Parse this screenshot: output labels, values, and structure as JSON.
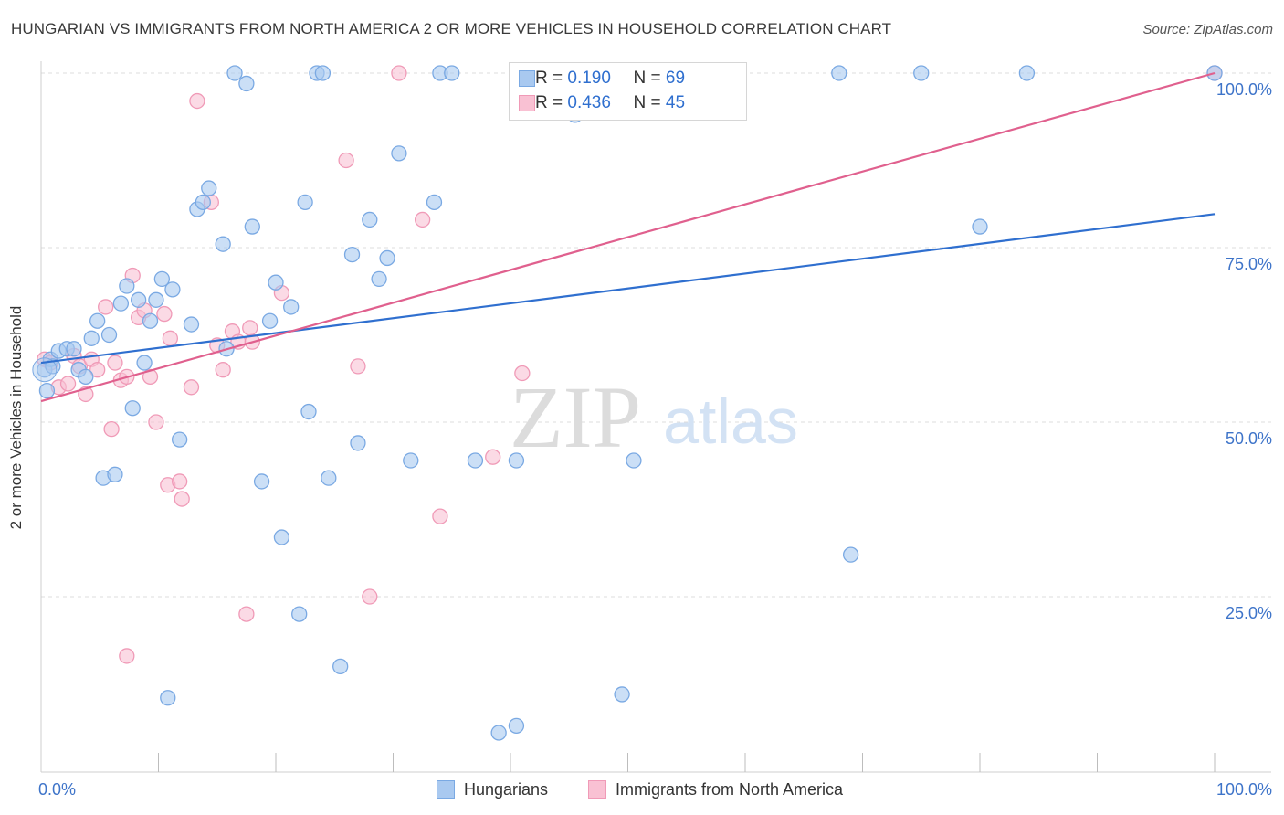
{
  "title": "HUNGARIAN VS IMMIGRANTS FROM NORTH AMERICA 2 OR MORE VEHICLES IN HOUSEHOLD CORRELATION CHART",
  "source": "Source: ZipAtlas.com",
  "watermark": {
    "zip": "ZIP",
    "atlas": "atlas"
  },
  "stats": {
    "r_label": "R =",
    "n_label": "N =",
    "hungarians": {
      "r": "0.190",
      "n": "69"
    },
    "immigrants": {
      "r": "0.436",
      "n": "45"
    }
  },
  "legend": {
    "hungarians": "Hungarians",
    "immigrants": "Immigrants from North America"
  },
  "colors": {
    "hungarians_fill": "#a9c9f0",
    "hungarians_stroke": "#7aa9e3",
    "hungarians_line": "#2f6fcf",
    "immigrants_fill": "#f9c1d3",
    "immigrants_stroke": "#f09ab7",
    "immigrants_line": "#e0608e",
    "tick_label": "#3e74c9"
  },
  "chart_data": {
    "type": "scatter",
    "title": "HUNGARIAN VS IMMIGRANTS FROM NORTH AMERICA 2 OR MORE VEHICLES IN HOUSEHOLD CORRELATION CHART",
    "xlabel": "",
    "ylabel": "2 or more Vehicles in Household",
    "xlim": [
      0,
      100
    ],
    "ylim": [
      0,
      105
    ],
    "x_tick_labels": [
      "0.0%",
      "100.0%"
    ],
    "y_ticks": [
      25,
      50,
      75,
      100
    ],
    "y_tick_labels": [
      "25.0%",
      "50.0%",
      "75.0%",
      "100.0%"
    ],
    "grid": "horizontal dashed",
    "legend_position": "bottom-center",
    "series": [
      {
        "name": "Hungarians",
        "trend": {
          "x": [
            0,
            100
          ],
          "y": [
            58.5,
            79.8
          ]
        },
        "points": [
          [
            0.3,
            57.5
          ],
          [
            0.5,
            54.5
          ],
          [
            0.8,
            59.0
          ],
          [
            1.0,
            58.0
          ],
          [
            1.5,
            60.2
          ],
          [
            2.2,
            60.5
          ],
          [
            2.8,
            60.5
          ],
          [
            3.2,
            57.5
          ],
          [
            3.8,
            56.5
          ],
          [
            4.3,
            62.0
          ],
          [
            4.8,
            64.5
          ],
          [
            5.3,
            42.0
          ],
          [
            5.8,
            62.5
          ],
          [
            6.3,
            42.5
          ],
          [
            6.8,
            67.0
          ],
          [
            7.3,
            69.5
          ],
          [
            7.8,
            52.0
          ],
          [
            8.3,
            67.5
          ],
          [
            8.8,
            58.5
          ],
          [
            9.3,
            64.5
          ],
          [
            9.8,
            67.5
          ],
          [
            10.3,
            70.5
          ],
          [
            10.8,
            10.5
          ],
          [
            11.2,
            69.0
          ],
          [
            11.8,
            47.5
          ],
          [
            12.8,
            64.0
          ],
          [
            13.3,
            80.5
          ],
          [
            13.8,
            81.5
          ],
          [
            14.3,
            83.5
          ],
          [
            15.5,
            75.5
          ],
          [
            15.8,
            60.5
          ],
          [
            16.5,
            100.0
          ],
          [
            17.5,
            98.5
          ],
          [
            18.0,
            78.0
          ],
          [
            18.8,
            41.5
          ],
          [
            19.5,
            64.5
          ],
          [
            20.0,
            70.0
          ],
          [
            20.5,
            33.5
          ],
          [
            21.3,
            66.5
          ],
          [
            22.0,
            22.5
          ],
          [
            22.5,
            81.5
          ],
          [
            22.8,
            51.5
          ],
          [
            23.5,
            100.0
          ],
          [
            24.0,
            100.0
          ],
          [
            24.5,
            42.0
          ],
          [
            25.5,
            15.0
          ],
          [
            26.5,
            74.0
          ],
          [
            27.0,
            47.0
          ],
          [
            28.0,
            79.0
          ],
          [
            28.8,
            70.5
          ],
          [
            29.5,
            73.5
          ],
          [
            30.5,
            88.5
          ],
          [
            31.5,
            44.5
          ],
          [
            33.5,
            81.5
          ],
          [
            34.0,
            100.0
          ],
          [
            35.0,
            100.0
          ],
          [
            37.0,
            44.5
          ],
          [
            39.0,
            5.5
          ],
          [
            40.5,
            44.5
          ],
          [
            40.5,
            6.5
          ],
          [
            45.5,
            94.0
          ],
          [
            49.5,
            11.0
          ],
          [
            50.5,
            44.5
          ],
          [
            68.0,
            100.0
          ],
          [
            69.0,
            31.0
          ],
          [
            75.0,
            100.0
          ],
          [
            80.0,
            78.0
          ],
          [
            84.0,
            100.0
          ],
          [
            100.0,
            100.0
          ]
        ]
      },
      {
        "name": "Immigrants from North America",
        "trend": {
          "x": [
            0,
            100
          ],
          "y": [
            53.0,
            100.0
          ]
        },
        "points": [
          [
            0.3,
            59.0
          ],
          [
            0.8,
            58.5
          ],
          [
            1.5,
            55.0
          ],
          [
            2.3,
            55.5
          ],
          [
            2.8,
            59.5
          ],
          [
            3.3,
            58.0
          ],
          [
            3.8,
            54.0
          ],
          [
            4.3,
            59.0
          ],
          [
            4.8,
            57.5
          ],
          [
            5.5,
            66.5
          ],
          [
            6.0,
            49.0
          ],
          [
            6.3,
            58.5
          ],
          [
            6.8,
            56.0
          ],
          [
            7.3,
            56.5
          ],
          [
            7.8,
            71.0
          ],
          [
            8.3,
            65.0
          ],
          [
            8.8,
            66.0
          ],
          [
            9.3,
            56.5
          ],
          [
            9.8,
            50.0
          ],
          [
            10.5,
            65.5
          ],
          [
            10.8,
            41.0
          ],
          [
            11.8,
            41.5
          ],
          [
            12.0,
            39.0
          ],
          [
            12.8,
            55.0
          ],
          [
            13.3,
            96.0
          ],
          [
            14.5,
            81.5
          ],
          [
            15.5,
            57.5
          ],
          [
            16.3,
            63.0
          ],
          [
            16.8,
            61.5
          ],
          [
            17.5,
            22.5
          ],
          [
            17.8,
            63.5
          ],
          [
            18.0,
            61.5
          ],
          [
            20.5,
            68.5
          ],
          [
            26.0,
            87.5
          ],
          [
            27.0,
            58.0
          ],
          [
            28.0,
            25.0
          ],
          [
            30.5,
            100.0
          ],
          [
            32.5,
            79.0
          ],
          [
            34.0,
            36.5
          ],
          [
            38.5,
            45.0
          ],
          [
            41.0,
            57.0
          ],
          [
            11.0,
            62.0
          ],
          [
            7.3,
            16.5
          ],
          [
            15.0,
            61.0
          ],
          [
            100.0,
            100.0
          ]
        ]
      }
    ]
  }
}
